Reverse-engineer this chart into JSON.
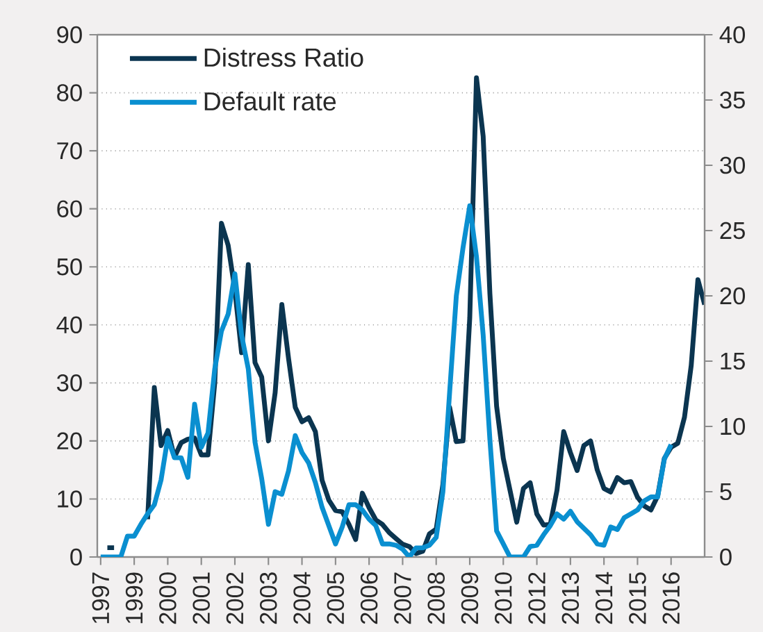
{
  "chart_data": {
    "type": "line",
    "categories": [
      "1997",
      null,
      null,
      null,
      null,
      "1999",
      null,
      null,
      null,
      null,
      "2000",
      null,
      null,
      null,
      null,
      "2001",
      null,
      null,
      null,
      null,
      "2002",
      null,
      null,
      null,
      null,
      "2003",
      null,
      null,
      null,
      null,
      "2004",
      null,
      null,
      null,
      null,
      "2005",
      null,
      null,
      null,
      null,
      "2006",
      null,
      null,
      null,
      null,
      "2007",
      null,
      null,
      null,
      null,
      "2008",
      null,
      null,
      null,
      null,
      "2009",
      null,
      null,
      null,
      null,
      "2010",
      null,
      null,
      null,
      null,
      "2012",
      null,
      null,
      null,
      null,
      "2013",
      null,
      null,
      null,
      null,
      "2014",
      null,
      null,
      null,
      null,
      "2015",
      null,
      null,
      null,
      null,
      "2016",
      null,
      null,
      null,
      null,
      null
    ],
    "ylim": [
      0,
      90
    ],
    "yticks": [
      0,
      10,
      20,
      30,
      40,
      50,
      60,
      70,
      80,
      90
    ],
    "y2lim": [
      0,
      40
    ],
    "y2ticks": [
      0,
      5,
      10,
      15,
      20,
      25,
      30,
      35,
      40
    ],
    "grid": "y",
    "legend": "top left",
    "marker": "none",
    "line_style": "solid",
    "series": [
      {
        "name": "Distress Ratio",
        "color": "#0b3550",
        "values": [
          null,
          1.6,
          1.6,
          null,
          null,
          null,
          null,
          6.5,
          29.2,
          19.2,
          21.8,
          17.2,
          19.7,
          20.3,
          20.5,
          17.6,
          17.6,
          30,
          57.5,
          53.7,
          46,
          35.2,
          50.4,
          33.5,
          31,
          20,
          28.3,
          43.5,
          34.2,
          25.8,
          23.3,
          24.0,
          21.6,
          13.2,
          9.8,
          8.0,
          7.8,
          5.6,
          3.0,
          11.0,
          8.5,
          6.4,
          5.6,
          4.2,
          3.2,
          2.2,
          1.8,
          0.6,
          1.0,
          4.0,
          4.8,
          12.5,
          25.8,
          19.9,
          20,
          41.2,
          82.6,
          72.5,
          45.4,
          26,
          17,
          11.5,
          6.0,
          11.8,
          12.8,
          7.4,
          5.5,
          5.6,
          11.5,
          21.6,
          18,
          14.9,
          19.2,
          20.0,
          15.0,
          11.8,
          11.2,
          13.7,
          12.8,
          13.0,
          10.3,
          8.8,
          8.1,
          10.5,
          17,
          18.9,
          19.6,
          24.1,
          33,
          47.8,
          43.5
        ]
      },
      {
        "name": "Default rate",
        "color": "#0a8fd0",
        "axis": "y2",
        "values": [
          0,
          0,
          0,
          0,
          1.6,
          1.6,
          2.5,
          3.3,
          4.0,
          5.9,
          9.1,
          7.6,
          7.6,
          6.1,
          11.7,
          8.4,
          9.5,
          14.4,
          17.3,
          18.6,
          21.7,
          17,
          14.4,
          8.8,
          6,
          2.5,
          5.0,
          4.8,
          6.6,
          9.3,
          8.0,
          7.2,
          5.7,
          3.8,
          2.4,
          1.0,
          2.3,
          4.0,
          4.0,
          3.6,
          2.9,
          2.4,
          1.0,
          1.0,
          0.9,
          0.6,
          0,
          0.7,
          0.7,
          0.9,
          1.5,
          5.0,
          12.6,
          20,
          23.7,
          26.9,
          23,
          17,
          9,
          2,
          1.0,
          0,
          0,
          0,
          0.8,
          0.9,
          1.7,
          2.4,
          3.3,
          2.9,
          3.5,
          2.7,
          2.2,
          1.7,
          1.0,
          0.9,
          2.3,
          2.1,
          3.0,
          3.3,
          3.6,
          4.3,
          4.6,
          4.6,
          7.5,
          8.6,
          null,
          null,
          null,
          null,
          null
        ]
      }
    ]
  }
}
